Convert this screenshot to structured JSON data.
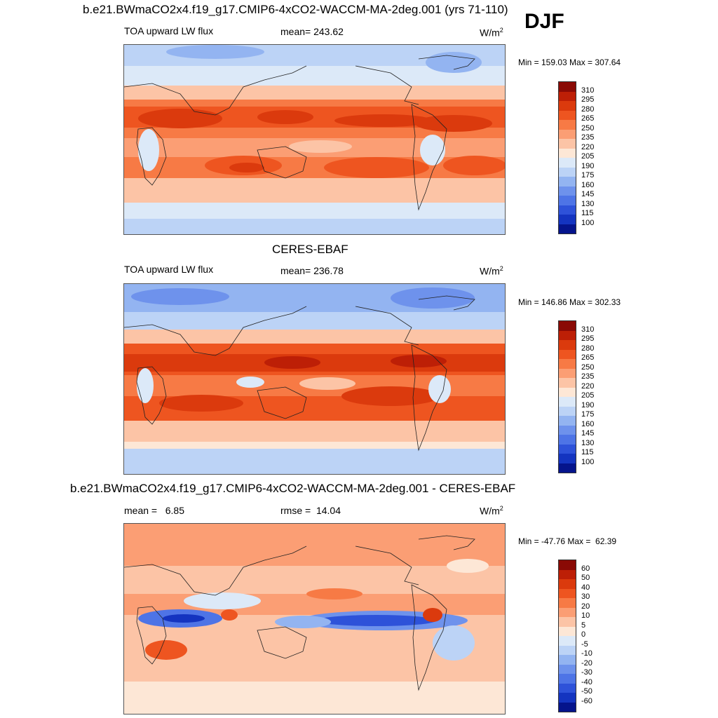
{
  "season": "DJF",
  "panels": [
    {
      "title": "b.e21.BWmaCO2x4.f19_g17.CMIP6-4xCO2-WACCM-MA-2deg.001 (yrs 71-110)",
      "field": "TOA upward LW flux",
      "stat": "mean= 243.62",
      "units": "W/m",
      "units_exp": "2",
      "minmax": "Min = 159.03 Max = 307.64",
      "colorbar_labels": [
        "310",
        "295",
        "280",
        "265",
        "250",
        "235",
        "220",
        "205",
        "190",
        "175",
        "160",
        "145",
        "130",
        "115",
        "100"
      ],
      "colorbar_colors": [
        "#8a0a05",
        "#bd1f06",
        "#db3a0d",
        "#ee5520",
        "#f77a45",
        "#fb9e74",
        "#fcc4a6",
        "#fde7d6",
        "#dce9f8",
        "#bcd3f6",
        "#93b4f1",
        "#6e92ec",
        "#4e74e6",
        "#2e52d9",
        "#1434c0",
        "#05148c"
      ]
    },
    {
      "title": "CERES-EBAF",
      "field": "TOA upward LW flux",
      "stat": "mean= 236.78",
      "units": "W/m",
      "units_exp": "2",
      "minmax": "Min = 146.86 Max = 302.33",
      "colorbar_labels": [
        "310",
        "295",
        "280",
        "265",
        "250",
        "235",
        "220",
        "205",
        "190",
        "175",
        "160",
        "145",
        "130",
        "115",
        "100"
      ],
      "colorbar_colors": [
        "#8a0a05",
        "#bd1f06",
        "#db3a0d",
        "#ee5520",
        "#f77a45",
        "#fb9e74",
        "#fcc4a6",
        "#fde7d6",
        "#dce9f8",
        "#bcd3f6",
        "#93b4f1",
        "#6e92ec",
        "#4e74e6",
        "#2e52d9",
        "#1434c0",
        "#05148c"
      ]
    },
    {
      "title": "b.e21.BWmaCO2x4.f19_g17.CMIP6-4xCO2-WACCM-MA-2deg.001 - CERES-EBAF",
      "field": "mean =   6.85",
      "stat": "rmse =  14.04",
      "units": "W/m",
      "units_exp": "2",
      "minmax": "Min = -47.76 Max =  62.39",
      "colorbar_labels": [
        "60",
        "50",
        "40",
        "30",
        "20",
        "10",
        "5",
        "0",
        "-5",
        "-10",
        "-20",
        "-30",
        "-40",
        "-50",
        "-60"
      ],
      "colorbar_colors": [
        "#8a0a05",
        "#bd1f06",
        "#db3a0d",
        "#ee5520",
        "#f77a45",
        "#fb9e74",
        "#fcc4a6",
        "#fde7d6",
        "#dce9f8",
        "#bcd3f6",
        "#93b4f1",
        "#6e92ec",
        "#4e74e6",
        "#2e52d9",
        "#1434c0",
        "#05148c"
      ]
    }
  ]
}
